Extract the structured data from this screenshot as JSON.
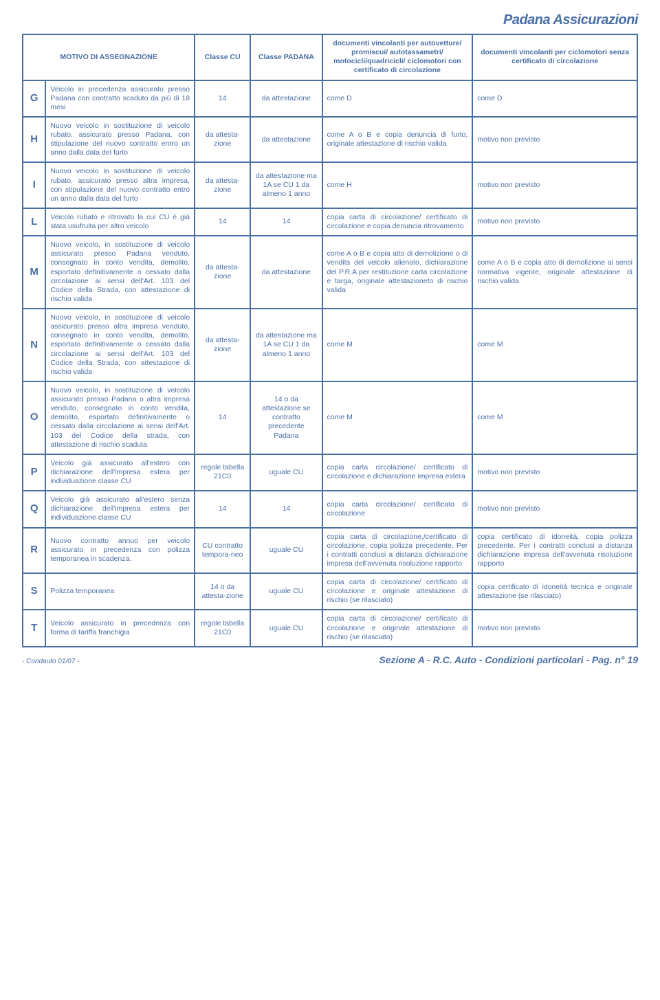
{
  "brand": "Padana Assicurazioni",
  "headers": {
    "motivo": "MOTIVO DI ASSEGNAZIONE",
    "classe_cu": "Classe CU",
    "classe_padana": "Classe PADANA",
    "doc_cert": "documenti vincolanti per autovetture/ promiscui/ autotassametri/ motocicli/quadricicli/ ciclomotori con certificato di circolazione",
    "doc_senza": "documenti vincolanti per ciclomotori senza certificato di circolazione"
  },
  "rows": [
    {
      "letter": "G",
      "motivo": "Veicolo in precedenza assicurato presso Padana con contratto scaduto da più di 18 mesi",
      "classe_cu": "14",
      "classe_padana": "da attestazione",
      "doc_cert": "come D",
      "doc_senza": "come D"
    },
    {
      "letter": "H",
      "motivo": "Nuovo veicolo in sostituzione di veicolo rubato, assicurato presso Padana, con stipulazione del nuovo contratto entro un anno dalla data del furto",
      "classe_cu": "da attesta-zione",
      "classe_padana": "da attestazione",
      "doc_cert": "come A o B e copia denuncia di furto, originale attestazione di rischio valida",
      "doc_senza": "motivo non previsto"
    },
    {
      "letter": "I",
      "motivo": "Nuovo veicolo in sostituzione di veicolo rubato, assicurato presso altra impresa, con stipulazione del nuovo contratto entro un anno dalla data del furto",
      "classe_cu": "da attesta-zione",
      "classe_padana": "da attestazione ma 1A se CU 1 da almeno 1 anno",
      "doc_cert": "come H",
      "doc_senza": "motivo non previsto"
    },
    {
      "letter": "L",
      "motivo": "Veicolo rubato e ritrovato la cui CU è già stata usufruita per altro veicolo",
      "classe_cu": "14",
      "classe_padana": "14",
      "doc_cert": "copia carta di circolazione/ certificato di circolazione e copia denuncia ritrovamento",
      "doc_senza": "motivo non previsto"
    },
    {
      "letter": "M",
      "motivo": "Nuovo veicolo, in sostituzione di veicolo assicurato presso Padana venduto, consegnato in conto vendita, demolito, esportato definitivamente o cessato dalla circolazione ai sensi dell'Art. 103 del Codice della Strada, con attestazione di rischio valida",
      "classe_cu": "da attesta-zione",
      "classe_padana": "da attestazione",
      "doc_cert": "come A o B e copia atto di demolizione o di vendita del veicolo alienato, dichiarazione del P.R.A per restituzione carta circolazione e targa, originale attestazioneto di rischio valida",
      "doc_senza": "come A o B e copia atto di demolizione ai sensi normativa vigente, originale attestazione di rischio valida"
    },
    {
      "letter": "N",
      "motivo": "Nuovo veicolo, in sostituzione di veicolo assicurato presso altra impresa venduto, consegnato in conto vendita, demolito, esportato definitivamente o cessato dalla circolazione ai sensi dell'Art. 103 del Codice della Strada, con attestazione di rischio valida",
      "classe_cu": "da attesta-zione",
      "classe_padana": "da attestazione ma 1A se CU 1 da almeno 1 anno",
      "doc_cert": "come M",
      "doc_senza": "come M"
    },
    {
      "letter": "O",
      "motivo": "Nuovo veicolo, in sostituzione di veicolo assicurato presso Padana o altra impresa venduto, consegnato in conto vendita, demolito, esportato definitivamente o cessato dalla circolazione ai sensi dell'Art. 103 del Codice della strada, con attestazione di rischio scaduta",
      "classe_cu": "14",
      "classe_padana": "14 o da attestazione se contratto precedente Padana",
      "doc_cert": "come M",
      "doc_senza": "come M"
    },
    {
      "letter": "P",
      "motivo": "Veicolo già assicurato all'estero con dichiarazione dell'impresa estera per individuazione classe CU",
      "classe_cu": "regole tabella 21C0",
      "classe_padana": "uguale CU",
      "doc_cert": "copia carta circolazione/ certificato di circolazione e dichiarazione impresa estera",
      "doc_senza": "motivo non previsto"
    },
    {
      "letter": "Q",
      "motivo": "Veicolo già assicurato all'estero senza dichiarazione dell'impresa estera per individuazione classe CU",
      "classe_cu": "14",
      "classe_padana": "14",
      "doc_cert": "copia carta circolazione/ certificato di circolazione",
      "doc_senza": "motivo non previsto"
    },
    {
      "letter": "R",
      "motivo": "Nuovo contratto annuo per veicolo assicurato in precedenza con polizza temporanea in scadenza.",
      "classe_cu": "CU contratto tempora-neo",
      "classe_padana": "uguale CU",
      "doc_cert": "copia carta di circolazione,/certificato di circolazione, copia polizza precedente. Per i contratti conclusi a distanza dichiarazione impresa dell'avvenuta risoluzione rapporto",
      "doc_senza": "copia certificato di idoneità, copia polizza precedente. Per i contratti conclusi a distanza dichiarazione impresa dell'avvenuta risoluzione rapporto"
    },
    {
      "letter": "S",
      "motivo": "Polizza temporanea",
      "classe_cu": "14 o da attesta-zione",
      "classe_padana": "uguale CU",
      "doc_cert": "copia carta di circolazione/ certificato di circolazione e originale attestazione di rischio (se rilasciato)",
      "doc_senza": "copia certificato di idoneità tecnica e originale attestazione (se rilasciato)"
    },
    {
      "letter": "T",
      "motivo": "Veicolo assicurato in precedenza con forma di tariffa franchigia",
      "classe_cu": "regole tabella 21C0",
      "classe_padana": "uguale CU",
      "doc_cert": "copia carta di circolazione/ certificato di circolazione e originale attestazione di rischio (se rilasciato)",
      "doc_senza": "motivo non previsto"
    }
  ],
  "footer": {
    "left": "- Condauto 01/07 -",
    "right": "Sezione A - R.C. Auto - Condizioni particolari - Pag. n° 19"
  },
  "colors": {
    "primary": "#4a6fa5",
    "background": "#ffffff"
  }
}
